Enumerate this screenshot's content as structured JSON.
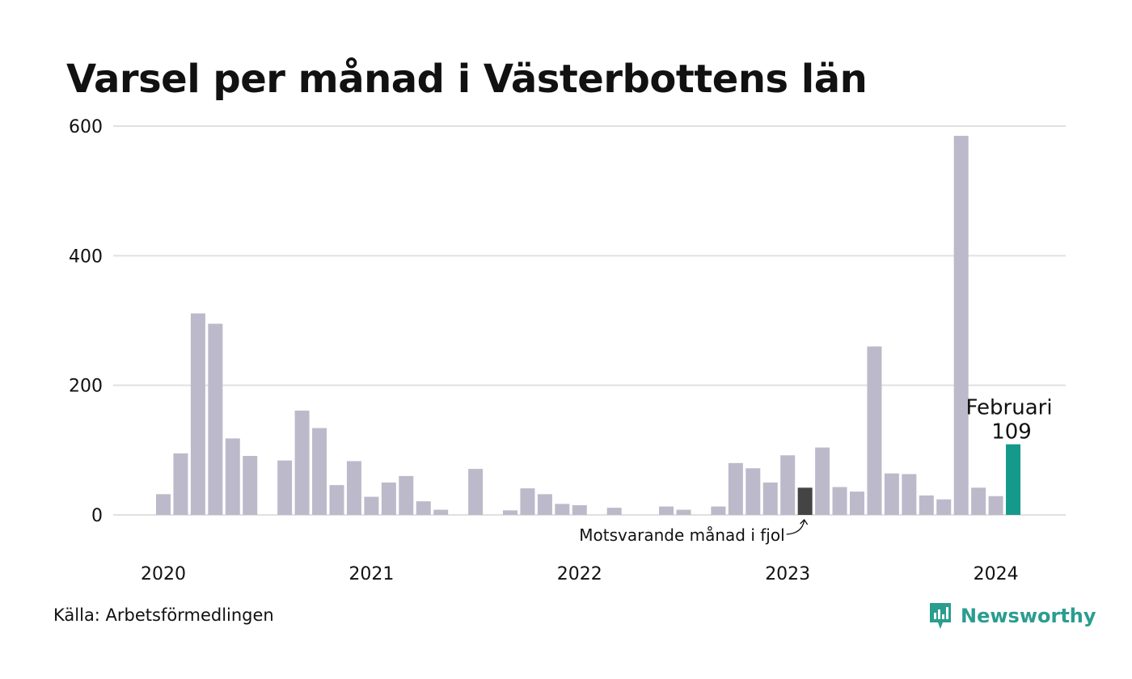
{
  "chart_data": {
    "type": "bar",
    "title": "Varsel per månad i Västerbottens län",
    "ylim": [
      0,
      600
    ],
    "yticks": [
      0,
      200,
      400,
      600
    ],
    "grid": true,
    "year_labels": [
      {
        "label": "2020",
        "month_index": 0
      },
      {
        "label": "2021",
        "month_index": 12
      },
      {
        "label": "2022",
        "month_index": 24
      },
      {
        "label": "2023",
        "month_index": 36
      },
      {
        "label": "2024",
        "month_index": 48
      }
    ],
    "months": [
      "2020-01",
      "2020-02",
      "2020-03",
      "2020-04",
      "2020-05",
      "2020-06",
      "2020-07",
      "2020-08",
      "2020-09",
      "2020-10",
      "2020-11",
      "2020-12",
      "2021-01",
      "2021-02",
      "2021-03",
      "2021-04",
      "2021-05",
      "2021-06",
      "2021-07",
      "2021-08",
      "2021-09",
      "2021-10",
      "2021-11",
      "2021-12",
      "2022-01",
      "2022-02",
      "2022-03",
      "2022-04",
      "2022-05",
      "2022-06",
      "2022-07",
      "2022-08",
      "2022-09",
      "2022-10",
      "2022-11",
      "2022-12",
      "2023-01",
      "2023-02",
      "2023-03",
      "2023-04",
      "2023-05",
      "2023-06",
      "2023-07",
      "2023-08",
      "2023-09",
      "2023-10",
      "2023-11",
      "2023-12",
      "2024-01",
      "2024-02"
    ],
    "values": [
      32,
      95,
      311,
      295,
      118,
      91,
      0,
      84,
      161,
      134,
      46,
      83,
      28,
      50,
      60,
      21,
      8,
      0,
      71,
      0,
      7,
      41,
      32,
      17,
      15,
      0,
      11,
      0,
      0,
      13,
      8,
      0,
      13,
      80,
      72,
      50,
      92,
      42,
      104,
      43,
      36,
      260,
      64,
      63,
      30,
      24,
      585,
      42,
      29,
      109
    ],
    "highlight_previous_year_index": 37,
    "highlight_current_index": 49,
    "colors": {
      "default": "#bcbaca",
      "previous_year": "#444444",
      "current": "#15998a",
      "grid": "#e0e0e0"
    },
    "annotation_current": {
      "month": "Februari",
      "value": "109"
    },
    "annotation_previous": "Motsvarande månad i fjol"
  },
  "footer": {
    "source": "Källa: Arbetsförmedlingen",
    "brand": "Newsworthy",
    "brand_icon": "newsworthy-logo-icon",
    "brand_color": "#2a9d8f"
  }
}
